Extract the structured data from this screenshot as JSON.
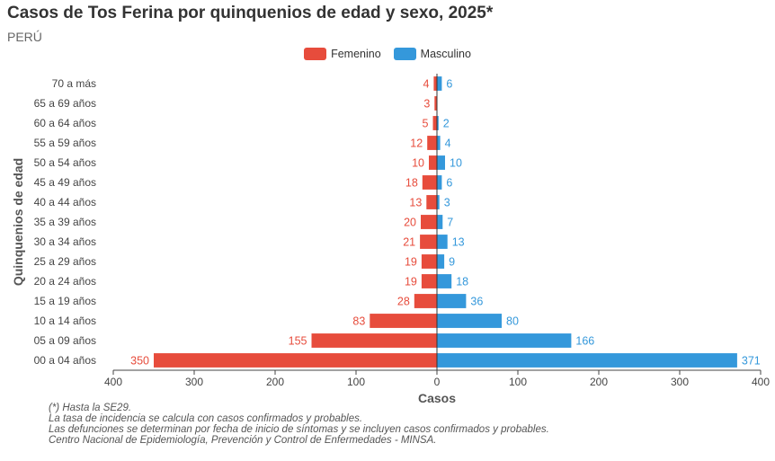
{
  "title": "Casos de Tos Ferina por quinquenios de edad y sexo, 2025*",
  "subtitle": "PERÚ",
  "notes": [
    "(*) Hasta la SE29.",
    "La tasa de incidencia se calcula con casos confirmados y probables.",
    "Las defunciones se determinan por fecha de inicio de síntomas y se incluyen casos confirmados y probables.",
    "Centro Nacional de Epidemiología, Prevención y Control de Enfermedades - MINSA."
  ],
  "colors": {
    "femenino": "#e74c3c",
    "masculino": "#3498db"
  },
  "chart_data": {
    "type": "bar",
    "orientation": "horizontal-population-pyramid",
    "categories": [
      "00 a 04 años",
      "05 a 09 años",
      "10 a 14 años",
      "15 a 19 años",
      "20 a 24 años",
      "25 a 29 años",
      "30 a 34 años",
      "35 a 39 años",
      "40 a 44 años",
      "45 a 49 años",
      "50 a 54 años",
      "55 a 59 años",
      "60 a 64 años",
      "65 a 69 años",
      "70 a más"
    ],
    "series": [
      {
        "name": "Femenino",
        "values": [
          350,
          155,
          83,
          28,
          19,
          19,
          21,
          20,
          13,
          18,
          10,
          12,
          5,
          3,
          4
        ]
      },
      {
        "name": "Masculino",
        "values": [
          371,
          166,
          80,
          36,
          18,
          9,
          13,
          7,
          3,
          6,
          10,
          4,
          2,
          0,
          6
        ]
      }
    ],
    "xlabel": "Casos",
    "ylabel": "Quinquenios de edad",
    "xlim": [
      -400,
      400
    ],
    "xticks": [
      -400,
      -300,
      -200,
      -100,
      0,
      100,
      200,
      300,
      400
    ],
    "xtick_labels": [
      "400",
      "300",
      "200",
      "100",
      "0",
      "100",
      "200",
      "300",
      "400"
    ],
    "legend_position": "top-center",
    "grid": false
  }
}
